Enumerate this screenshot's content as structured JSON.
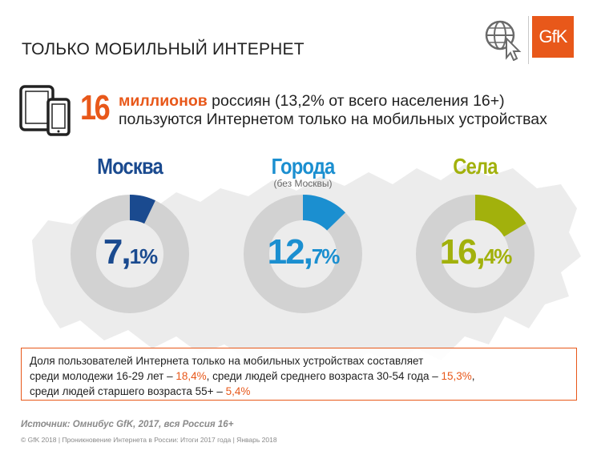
{
  "header": {
    "title": "ТОЛЬКО МОБИЛЬНЫЙ ИНТЕРНЕТ",
    "logo_text": "GfK"
  },
  "headline": {
    "number": "16",
    "highlight": "миллионов",
    "text_line1": " россиян (13,2% от всего населения 16+)",
    "text_line2": "пользуются Интернетом только на мобильных устройствах"
  },
  "colors": {
    "accent": "#e8581a",
    "moscow": "#1a4a8f",
    "cities": "#1b8fd0",
    "villages": "#a2b10c",
    "ring": "#d2d2d2"
  },
  "chart_data": [
    {
      "type": "pie",
      "title": "Москва",
      "subtitle": "",
      "values": [
        7.1,
        92.9
      ],
      "labels": [
        "7,1%",
        ""
      ],
      "label_major": "7,",
      "label_minor": "1%"
    },
    {
      "type": "pie",
      "title": "Города",
      "subtitle": "(без Москвы)",
      "values": [
        12.7,
        87.3
      ],
      "labels": [
        "12,7%",
        ""
      ],
      "label_major": "12,",
      "label_minor": "7%"
    },
    {
      "type": "pie",
      "title": "Села",
      "subtitle": "",
      "values": [
        16.4,
        83.6
      ],
      "labels": [
        "16,4%",
        ""
      ],
      "label_major": "16,",
      "label_minor": "4%"
    }
  ],
  "info": {
    "line1": "Доля пользователей Интернета только на мобильных устройствах составляет",
    "line2_a": "среди молодежи 16-29 лет – ",
    "line2_v1": "18,4%",
    "line2_b": ", среди людей среднего возраста 30-54 года – ",
    "line2_v2": "15,3%",
    "line2_c": ",",
    "line3_a": "среди людей старшего возраста 55+ – ",
    "line3_v": "5,4%"
  },
  "source": "Источник: Омнибус GfK, 2017, вся Россия 16+",
  "footer": "© GfK 2018 | Проникновение Интернета в России: Итоги 2017 года | Январь 2018"
}
